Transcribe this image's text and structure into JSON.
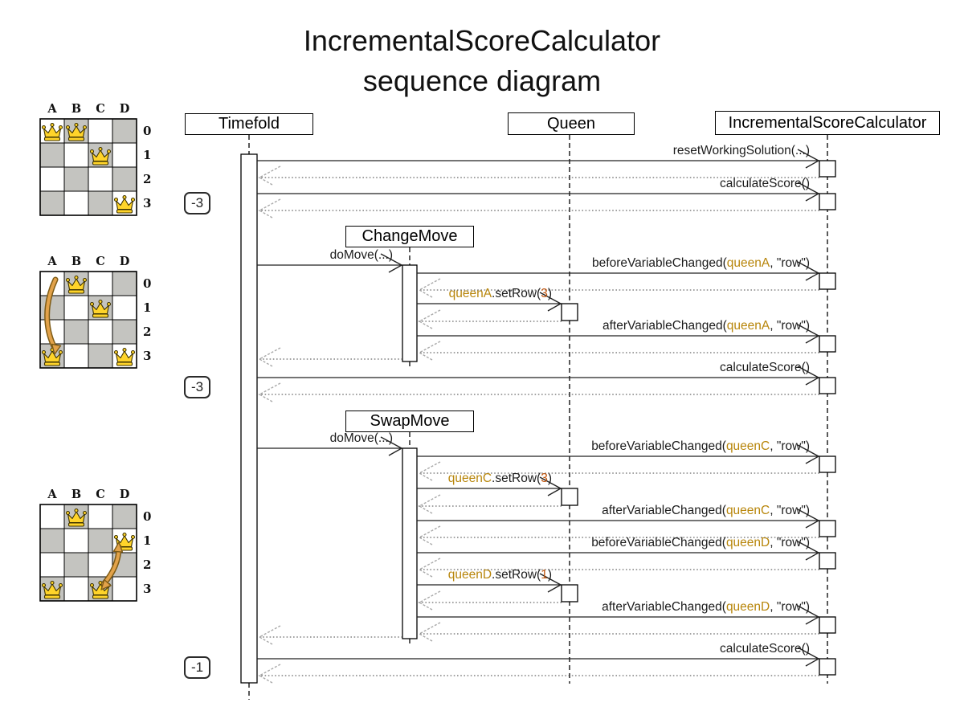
{
  "title": {
    "line1": "IncrementalScoreCalculator",
    "line2": "sequence diagram"
  },
  "colors": {
    "queen_ref": "#b8860b",
    "number_arg": "#c0550e",
    "board_dark_cell": "#c4c4c0",
    "board_light_cell": "#ffffff",
    "crown_fill": "#ffd42a",
    "crown_stroke": "#3d3200",
    "move_arrow_fill": "#e2a24a",
    "move_arrow_stroke": "#7d5b16",
    "line_color": "#222222",
    "return_color": "#444444",
    "return_head_color": "#a9a9a9"
  },
  "participants": [
    {
      "id": "timefold",
      "label": "Timefold"
    },
    {
      "id": "queen",
      "label": "Queen"
    },
    {
      "id": "isc",
      "label": "IncrementalScoreCalculator"
    }
  ],
  "moves": [
    {
      "id": "changemove",
      "label": "ChangeMove"
    },
    {
      "id": "swapmove",
      "label": "SwapMove"
    }
  ],
  "badges": [
    {
      "label": "-3"
    },
    {
      "label": "-3"
    },
    {
      "label": "-1"
    }
  ],
  "messages": [
    {
      "id": "reset-working-solution",
      "parts": [
        {
          "t": "resetWorkingSolution(...)"
        }
      ]
    },
    {
      "id": "calculate-score-1",
      "parts": [
        {
          "t": "calculateScore()"
        }
      ]
    },
    {
      "id": "do-move-1",
      "parts": [
        {
          "t": "doMove(...)"
        }
      ]
    },
    {
      "id": "before-variable-changed-queen-a",
      "parts": [
        {
          "t": "beforeVariableChanged("
        },
        {
          "t": "queenA",
          "c": "ref"
        },
        {
          "t": ", \"row\")"
        }
      ]
    },
    {
      "id": "queen-a-set-row",
      "parts": [
        {
          "t": "queenA",
          "c": "ref"
        },
        {
          "t": ".setRow("
        },
        {
          "t": "3",
          "c": "num"
        },
        {
          "t": ")"
        }
      ]
    },
    {
      "id": "after-variable-changed-queen-a",
      "parts": [
        {
          "t": "afterVariableChanged("
        },
        {
          "t": "queenA",
          "c": "ref"
        },
        {
          "t": ", \"row\")"
        }
      ]
    },
    {
      "id": "calculate-score-2",
      "parts": [
        {
          "t": "calculateScore()"
        }
      ]
    },
    {
      "id": "do-move-2",
      "parts": [
        {
          "t": "doMove(...)"
        }
      ]
    },
    {
      "id": "before-variable-changed-queen-c",
      "parts": [
        {
          "t": "beforeVariableChanged("
        },
        {
          "t": "queenC",
          "c": "ref"
        },
        {
          "t": ", \"row\")"
        }
      ]
    },
    {
      "id": "queen-c-set-row",
      "parts": [
        {
          "t": "queenC",
          "c": "ref"
        },
        {
          "t": ".setRow("
        },
        {
          "t": "3",
          "c": "num"
        },
        {
          "t": ")"
        }
      ]
    },
    {
      "id": "after-variable-changed-queen-c",
      "parts": [
        {
          "t": "afterVariableChanged("
        },
        {
          "t": "queenC",
          "c": "ref"
        },
        {
          "t": ", \"row\")"
        }
      ]
    },
    {
      "id": "before-variable-changed-queen-d",
      "parts": [
        {
          "t": "beforeVariableChanged("
        },
        {
          "t": "queenD",
          "c": "ref"
        },
        {
          "t": ", \"row\")"
        }
      ]
    },
    {
      "id": "queen-d-set-row",
      "parts": [
        {
          "t": "queenD",
          "c": "ref"
        },
        {
          "t": ".setRow("
        },
        {
          "t": "1",
          "c": "num"
        },
        {
          "t": ")"
        }
      ]
    },
    {
      "id": "after-variable-changed-queen-d",
      "parts": [
        {
          "t": "afterVariableChanged("
        },
        {
          "t": "queenD",
          "c": "ref"
        },
        {
          "t": ", \"row\")"
        }
      ]
    },
    {
      "id": "calculate-score-3",
      "parts": [
        {
          "t": "calculateScore()"
        }
      ]
    }
  ],
  "boards": [
    {
      "name": "initial-solution",
      "columns": [
        "A",
        "B",
        "C",
        "D"
      ],
      "rows": [
        "0",
        "1",
        "2",
        "3"
      ],
      "queens": [
        {
          "col": 0,
          "row": 0
        },
        {
          "col": 1,
          "row": 0
        },
        {
          "col": 2,
          "row": 1
        },
        {
          "col": 3,
          "row": 3
        }
      ],
      "move_arrow": null
    },
    {
      "name": "after-change-move",
      "columns": [
        "A",
        "B",
        "C",
        "D"
      ],
      "rows": [
        "0",
        "1",
        "2",
        "3"
      ],
      "queens": [
        {
          "col": 1,
          "row": 0
        },
        {
          "col": 2,
          "row": 1
        },
        {
          "col": 0,
          "row": 3
        },
        {
          "col": 3,
          "row": 3
        }
      ],
      "move_arrow": {
        "style": "single",
        "from": {
          "col": 0,
          "row": 0
        },
        "to": {
          "col": 0,
          "row": 3
        }
      }
    },
    {
      "name": "after-swap-move",
      "columns": [
        "A",
        "B",
        "C",
        "D"
      ],
      "rows": [
        "0",
        "1",
        "2",
        "3"
      ],
      "queens": [
        {
          "col": 1,
          "row": 0
        },
        {
          "col": 3,
          "row": 1
        },
        {
          "col": 0,
          "row": 3
        },
        {
          "col": 2,
          "row": 3
        }
      ],
      "move_arrow": {
        "style": "double",
        "from": {
          "col": 2,
          "row": 3
        },
        "to": {
          "col": 3,
          "row": 1
        }
      }
    }
  ]
}
